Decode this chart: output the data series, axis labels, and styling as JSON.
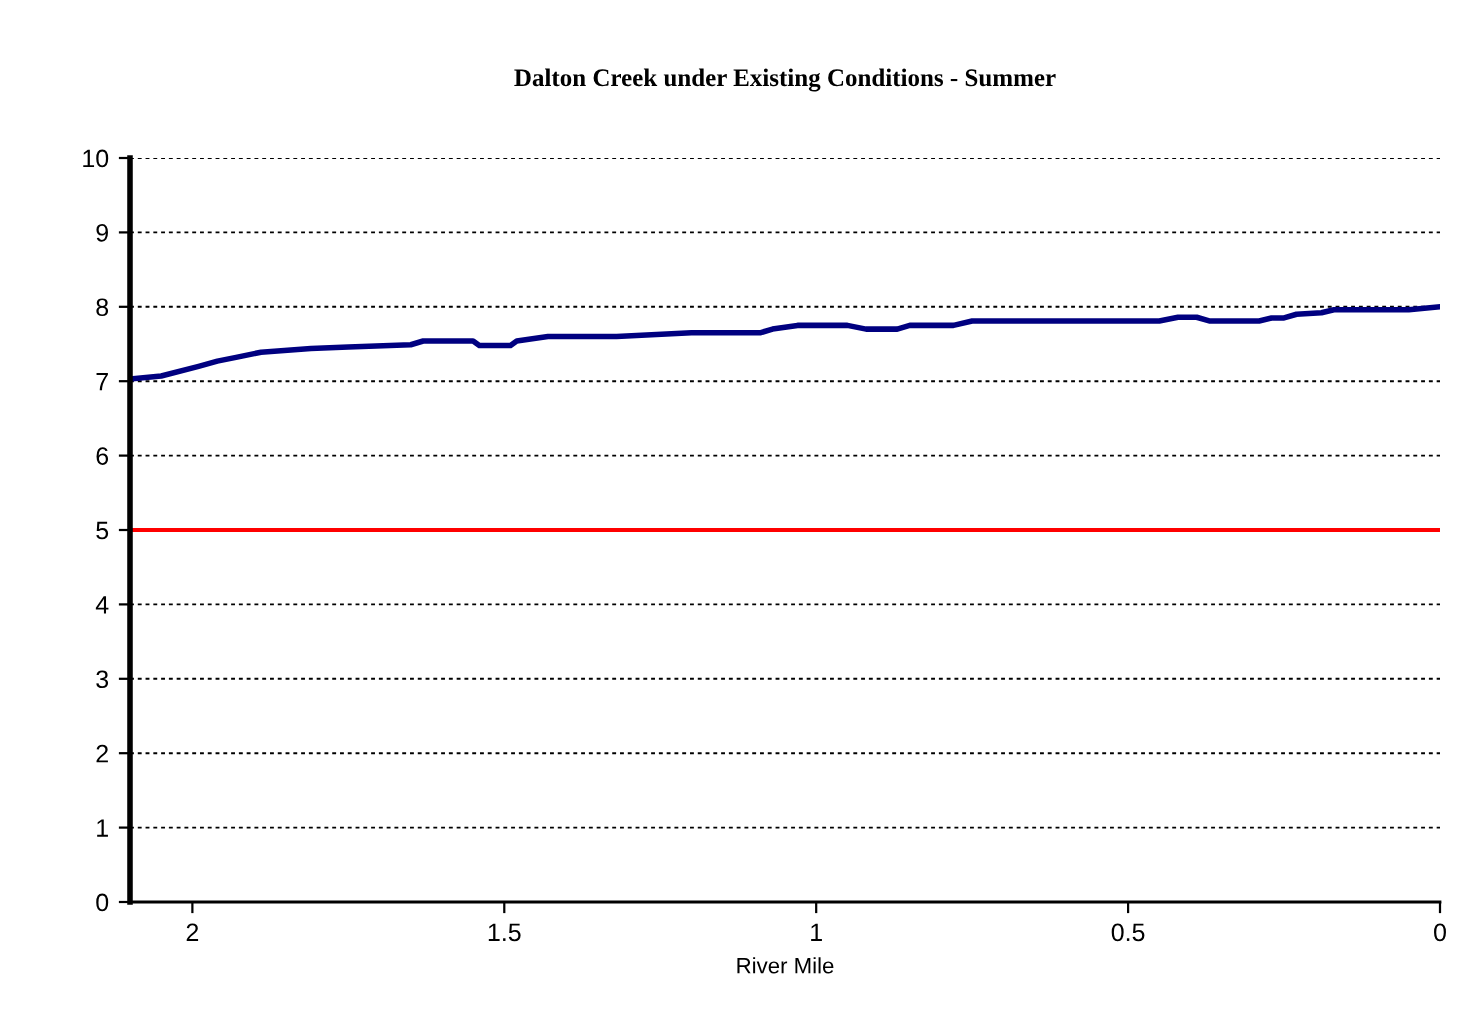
{
  "chart_data": {
    "type": "line",
    "title": "Dalton Creek under Existing Conditions - Summer",
    "xlabel": "River Mile",
    "xlim": [
      2.1,
      0
    ],
    "xticks": [
      {
        "value": 2,
        "label": "2"
      },
      {
        "value": 1.5,
        "label": "1.5"
      },
      {
        "value": 1,
        "label": "1"
      },
      {
        "value": 0.5,
        "label": "0.5"
      },
      {
        "value": 0,
        "label": "0"
      }
    ],
    "ylim": [
      0,
      10
    ],
    "yticks": [
      0,
      1,
      2,
      3,
      4,
      5,
      6,
      7,
      8,
      9,
      10
    ],
    "grid": "y",
    "legend": false,
    "marker": "none",
    "line_style": "solid",
    "series": [
      {
        "color": "#000080",
        "x": [
          2.1,
          2.05,
          1.99,
          1.96,
          1.93,
          1.89,
          1.81,
          1.75,
          1.65,
          1.63,
          1.55,
          1.54,
          1.49,
          1.48,
          1.43,
          1.32,
          1.2,
          1.09,
          1.07,
          1.03,
          0.95,
          0.92,
          0.87,
          0.85,
          0.78,
          0.75,
          0.45,
          0.42,
          0.39,
          0.37,
          0.29,
          0.27,
          0.25,
          0.23,
          0.19,
          0.17,
          0.05,
          0
        ],
        "values": [
          7.03,
          7.07,
          7.2,
          7.27,
          7.32,
          7.39,
          7.44,
          7.46,
          7.49,
          7.54,
          7.54,
          7.48,
          7.48,
          7.54,
          7.6,
          7.6,
          7.65,
          7.65,
          7.7,
          7.75,
          7.75,
          7.7,
          7.7,
          7.75,
          7.75,
          7.81,
          7.81,
          7.86,
          7.86,
          7.81,
          7.81,
          7.85,
          7.85,
          7.9,
          7.92,
          7.96,
          7.96,
          8.0
        ]
      }
    ],
    "ref_lines": [
      {
        "axis": "y",
        "value": 5,
        "color": "#ff0000"
      }
    ]
  }
}
